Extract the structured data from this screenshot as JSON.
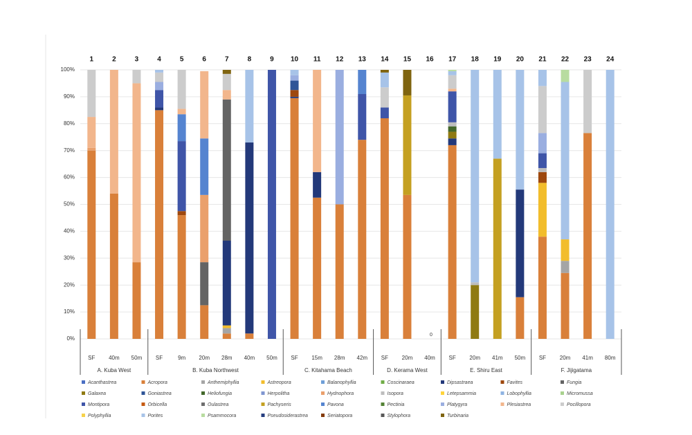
{
  "chart_data": {
    "type": "stacked_bar",
    "bar_numbers": [
      1,
      2,
      3,
      4,
      5,
      6,
      7,
      8,
      9,
      10,
      11,
      12,
      13,
      14,
      15,
      16,
      17,
      18,
      19,
      20,
      21,
      22,
      23,
      24
    ],
    "categories": [
      "SF",
      "40m",
      "50m",
      "SF",
      "9m",
      "20m",
      "28m",
      "40m",
      "50m",
      "SF",
      "15m",
      "28m",
      "42m",
      "SF",
      "20m",
      "40m",
      "SF",
      "20m",
      "41m",
      "50m",
      "SF",
      "20m",
      "41m",
      "80m"
    ],
    "groups": [
      {
        "name": "A. Kuba West",
        "size": 3
      },
      {
        "name": "B. Kuba Northwest",
        "size": 6
      },
      {
        "name": "C. Kitahama Beach",
        "size": 4
      },
      {
        "name": "D. Kerama West",
        "size": 3
      },
      {
        "name": "E. Shiru East",
        "size": 4
      },
      {
        "name": "F. Jijigatama",
        "size": 4
      }
    ],
    "annotation": "0",
    "ylim": [
      0,
      100
    ],
    "yticks": [
      {
        "value": 0,
        "label": "0%"
      },
      {
        "value": 10,
        "label": "10%"
      },
      {
        "value": 20,
        "label": "20%"
      },
      {
        "value": 30,
        "label": "30%"
      },
      {
        "value": 40,
        "label": "40%"
      },
      {
        "value": 50,
        "label": "50%"
      },
      {
        "value": 60,
        "label": "60%"
      },
      {
        "value": 70,
        "label": "70%"
      },
      {
        "value": 80,
        "label": "80%"
      },
      {
        "value": 90,
        "label": "90%"
      },
      {
        "value": 100,
        "label": "100%"
      }
    ],
    "grid": true,
    "series": [
      {
        "name": "Acanthastrea",
        "color": "#4a6fc4",
        "values": [
          0,
          0,
          0,
          0,
          0,
          0,
          0,
          0,
          0,
          0,
          0,
          0,
          0,
          0,
          0,
          0,
          0,
          0,
          0,
          0,
          0,
          0,
          0,
          0
        ]
      },
      {
        "name": "Acropora",
        "color": "#d9803a",
        "values": [
          70,
          54,
          28.5,
          85,
          46,
          12.5,
          2,
          2,
          0,
          89.5,
          52.5,
          50,
          74,
          82,
          53.5,
          0,
          72,
          0,
          0,
          15.5,
          38,
          24.5,
          76.5,
          0
        ]
      },
      {
        "name": "Anthemiphyllia",
        "color": "#a5a5a5",
        "values": [
          0,
          0,
          0,
          0,
          0,
          0,
          2,
          0,
          0,
          0,
          0,
          0,
          0,
          0,
          0,
          0,
          0,
          0,
          0,
          0,
          0,
          4.5,
          0,
          0
        ]
      },
      {
        "name": "Astreopora",
        "color": "#f2bd2c",
        "values": [
          0,
          0,
          0,
          0,
          0,
          0,
          1,
          0,
          0,
          0,
          0,
          0,
          0,
          0,
          0,
          0,
          0,
          0,
          0,
          0,
          20,
          8,
          0,
          0
        ]
      },
      {
        "name": "Balanophyllia",
        "color": "#6f9fd8",
        "values": [
          0,
          0,
          0,
          0,
          0,
          0,
          0,
          0,
          0,
          0,
          0,
          0,
          0,
          0,
          0,
          0,
          0,
          0,
          0,
          0,
          0,
          0,
          0,
          0
        ]
      },
      {
        "name": "Coscinaraea",
        "color": "#70ad47",
        "values": [
          0,
          0,
          0,
          0,
          0,
          0,
          0,
          0,
          0,
          0,
          0,
          0,
          0,
          0,
          0,
          0,
          0,
          0,
          0,
          0,
          0,
          0,
          0,
          0
        ]
      },
      {
        "name": "Dipsastraea",
        "color": "#23397a",
        "values": [
          0,
          0,
          0,
          1,
          0,
          0,
          31.5,
          71,
          0,
          0.5,
          9.5,
          0,
          0,
          0,
          0,
          0,
          2.5,
          0,
          0,
          40,
          0,
          0,
          0,
          0
        ]
      },
      {
        "name": "Favites",
        "color": "#9e480e",
        "values": [
          0,
          0,
          0,
          0,
          1.5,
          0,
          0,
          0,
          0,
          2.5,
          0,
          0,
          0,
          0,
          0,
          0,
          0,
          0,
          0,
          0,
          4,
          0,
          0,
          0
        ]
      },
      {
        "name": "Fungia",
        "color": "#646464",
        "values": [
          0,
          0,
          0,
          0,
          0,
          16,
          52.5,
          0,
          0,
          0,
          0,
          0,
          0,
          0,
          0,
          0,
          0,
          0,
          0,
          0,
          0,
          0,
          0,
          0
        ]
      },
      {
        "name": "Galaxea",
        "color": "#8f7a12",
        "values": [
          0,
          0,
          0,
          0,
          0,
          0,
          0,
          0,
          0,
          0,
          0,
          0,
          0,
          0,
          0,
          0,
          2.5,
          20,
          0,
          0,
          0,
          0,
          0,
          0
        ]
      },
      {
        "name": "Goniastrea",
        "color": "#2f5597",
        "values": [
          0,
          0,
          0,
          0,
          0,
          0,
          0,
          0,
          0,
          3.5,
          0,
          0,
          0,
          0,
          0,
          0,
          0,
          0,
          0,
          0,
          0,
          0,
          0,
          0
        ]
      },
      {
        "name": "Heliofungia",
        "color": "#43682b",
        "values": [
          0,
          0,
          0,
          0,
          0,
          0,
          0,
          0,
          0,
          0,
          0,
          0,
          0,
          0,
          0,
          0,
          2,
          0,
          0,
          0,
          0,
          0,
          0,
          0
        ]
      },
      {
        "name": "Herpolitha",
        "color": "#7f96d0",
        "values": [
          0,
          0,
          0,
          0,
          0,
          0,
          0,
          0,
          0,
          0,
          0,
          0,
          0,
          0,
          0,
          0,
          0,
          0,
          0,
          0,
          0,
          0,
          0,
          0
        ]
      },
      {
        "name": "Hydnophora",
        "color": "#eaa06c",
        "values": [
          1,
          0,
          0,
          0,
          0,
          25,
          0,
          0,
          0,
          0,
          0,
          0,
          0,
          0,
          0,
          0,
          0,
          0,
          0,
          0,
          0,
          0,
          0,
          0
        ]
      },
      {
        "name": "Isopora",
        "color": "#bdbdbd",
        "values": [
          0,
          0,
          0,
          0,
          0,
          0,
          0,
          0,
          0,
          0,
          0,
          0,
          0,
          0,
          0,
          0,
          1.5,
          1,
          0,
          0,
          1.5,
          0,
          0,
          0
        ]
      },
      {
        "name": "Letepsammia",
        "color": "#ffd43b",
        "values": [
          0,
          0,
          0,
          0,
          0,
          0,
          0,
          0,
          0,
          0,
          0,
          0,
          0,
          0,
          0,
          0,
          0,
          0,
          0,
          0,
          0,
          0,
          0,
          0
        ]
      },
      {
        "name": "Lobophyllia",
        "color": "#8fb4e3",
        "values": [
          0,
          0,
          0,
          0,
          0,
          0,
          0,
          0,
          0,
          0,
          0,
          0,
          0,
          0,
          0,
          0,
          0,
          0,
          0,
          0,
          0,
          0,
          0,
          0
        ]
      },
      {
        "name": "Micromussa",
        "color": "#a9d18e",
        "values": [
          0,
          0,
          0,
          0,
          0,
          0,
          0,
          0,
          0,
          0,
          0,
          0,
          0,
          0,
          0,
          0,
          0,
          0,
          0,
          0,
          0,
          0,
          0,
          0
        ]
      },
      {
        "name": "Montipora",
        "color": "#3f55a8",
        "values": [
          0,
          0,
          0,
          6.5,
          26,
          0,
          0,
          0,
          100,
          0,
          0,
          0,
          17,
          4,
          0,
          0,
          11.5,
          0,
          0,
          0,
          5.5,
          0,
          0,
          0
        ]
      },
      {
        "name": "Orbicella",
        "color": "#c55a11",
        "values": [
          0,
          0,
          0,
          0,
          0,
          0,
          0,
          0,
          0,
          0,
          0,
          0,
          0,
          0,
          0,
          0,
          0,
          0,
          0,
          0,
          0,
          0,
          0,
          0
        ]
      },
      {
        "name": "Oulastrea",
        "color": "#6e6e6e",
        "values": [
          0,
          0,
          0,
          0,
          0,
          0,
          0,
          0,
          0,
          0,
          0,
          0,
          0,
          0,
          0,
          0,
          0,
          0,
          0,
          0,
          0,
          0,
          0,
          0
        ]
      },
      {
        "name": "Pachyseris",
        "color": "#c4a021",
        "values": [
          0,
          0,
          0,
          0,
          0,
          0,
          0,
          0,
          0,
          0,
          0,
          0,
          0,
          0,
          37,
          0,
          0,
          0,
          67,
          0,
          0,
          0,
          0,
          0
        ]
      },
      {
        "name": "Pavona",
        "color": "#5584d0",
        "values": [
          0,
          0,
          0,
          0,
          10,
          21,
          0,
          0,
          0,
          0,
          0,
          0,
          9,
          0,
          0,
          0,
          0,
          0,
          0,
          0,
          0,
          0,
          0,
          0
        ]
      },
      {
        "name": "Pectinia",
        "color": "#548235",
        "values": [
          0,
          0,
          0,
          0,
          0,
          0,
          0,
          0,
          0,
          0,
          0,
          0,
          0,
          0,
          0,
          0,
          0,
          0,
          0,
          0,
          0,
          0,
          0,
          0
        ]
      },
      {
        "name": "Platygyra",
        "color": "#9aaee0",
        "values": [
          0,
          0,
          0,
          3,
          0,
          0,
          0,
          0,
          0,
          2,
          0,
          50,
          0,
          0,
          0,
          0,
          0,
          0,
          0,
          0,
          7.5,
          0,
          0,
          0
        ]
      },
      {
        "name": "Plesiastrea",
        "color": "#f2b68c",
        "values": [
          11.5,
          46,
          66.5,
          0,
          2,
          25,
          3.5,
          0,
          0,
          0,
          38,
          0,
          0,
          0,
          0,
          0,
          1,
          0,
          0,
          0,
          0,
          0,
          0,
          0
        ]
      },
      {
        "name": "Pocillopora",
        "color": "#cccccc",
        "values": [
          17.5,
          0,
          5,
          3.5,
          14.5,
          0,
          6,
          0,
          0,
          0,
          0,
          0,
          0,
          7.5,
          0,
          0,
          5,
          0,
          0,
          0,
          17.5,
          0,
          23.5,
          0
        ]
      },
      {
        "name": "Polyphyllia",
        "color": "#f6d24a",
        "values": [
          0,
          0,
          0,
          0,
          0,
          0,
          0,
          0,
          0,
          0,
          0,
          0,
          0,
          0,
          0,
          0,
          0,
          0,
          0,
          0,
          0,
          0,
          0,
          0
        ]
      },
      {
        "name": "Porites",
        "color": "#a7c3e8",
        "values": [
          0,
          0,
          0,
          1,
          0,
          0,
          0,
          27,
          0,
          2,
          0,
          0,
          0,
          5.5,
          0,
          0,
          1.5,
          79,
          33,
          44.5,
          6,
          58.5,
          0,
          100
        ]
      },
      {
        "name": "Psammocora",
        "color": "#b8dca0",
        "values": [
          0,
          0,
          0,
          0,
          0,
          0,
          0,
          0,
          0,
          0,
          0,
          0,
          0,
          0,
          0,
          0,
          0.5,
          0,
          0,
          0,
          0,
          4.5,
          0,
          0
        ]
      },
      {
        "name": "Pseudosiderastrea",
        "color": "#263e7f",
        "values": [
          0,
          0,
          0,
          0,
          0,
          0,
          0,
          0,
          0,
          0,
          0,
          0,
          0,
          0,
          0,
          0,
          0,
          0,
          0,
          0,
          0,
          0,
          0,
          0
        ]
      },
      {
        "name": "Seriatopora",
        "color": "#843c0c",
        "values": [
          0,
          0,
          0,
          0,
          0,
          0,
          0,
          0,
          0,
          0,
          0,
          0,
          0,
          0,
          0,
          0,
          0,
          0,
          0,
          0,
          0,
          0,
          0,
          0
        ]
      },
      {
        "name": "Stylophora",
        "color": "#595959",
        "values": [
          0,
          0,
          0,
          0,
          0,
          0,
          0,
          0,
          0,
          0,
          0,
          0,
          0,
          0,
          0,
          0,
          0,
          0,
          0,
          0,
          0,
          0,
          0,
          0
        ]
      },
      {
        "name": "Turbinaria",
        "color": "#7f6410",
        "values": [
          0,
          0,
          0,
          0,
          0,
          0,
          1.5,
          0,
          0,
          0,
          0,
          0,
          0,
          1,
          9.5,
          0,
          0,
          0,
          0,
          0,
          0,
          0,
          0,
          0
        ]
      }
    ]
  }
}
